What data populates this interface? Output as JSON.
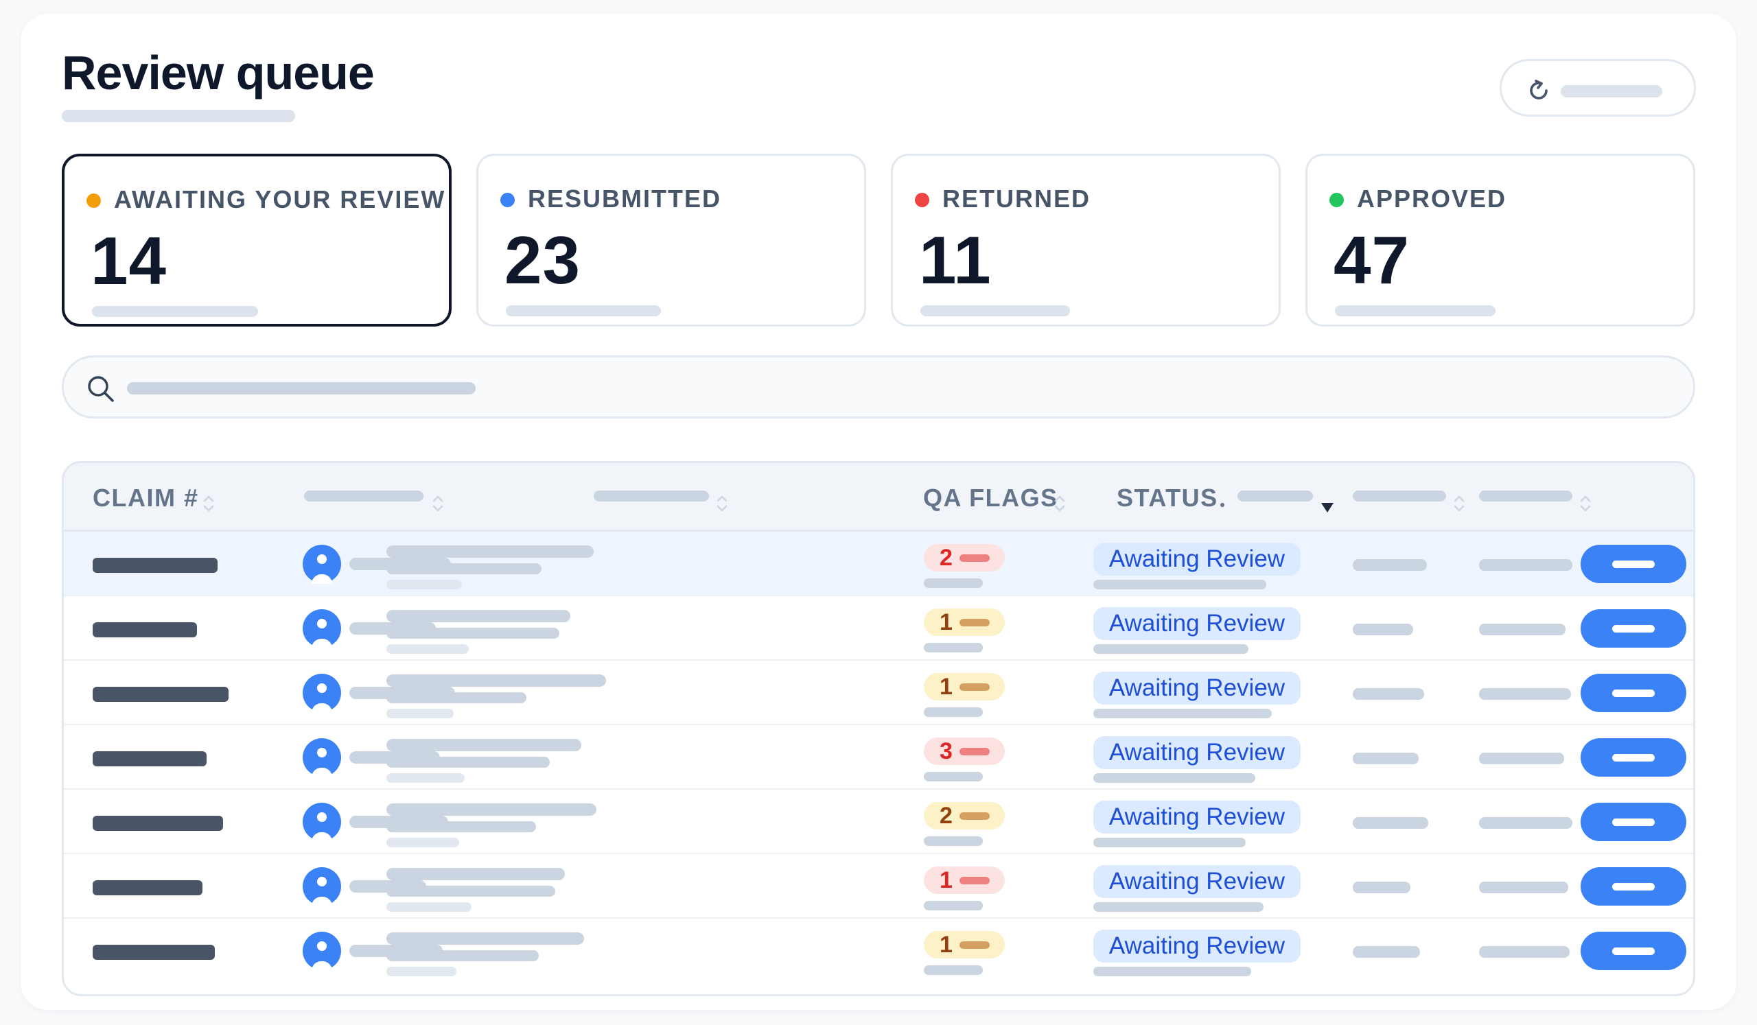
{
  "page": {
    "title": "Review queue"
  },
  "stats": [
    {
      "label": "AWAITING YOUR REVIEW",
      "value": "14",
      "color": "#f59e0b",
      "active": true
    },
    {
      "label": "RESUBMITTED",
      "value": "23",
      "color": "#3b82f6",
      "active": false
    },
    {
      "label": "RETURNED",
      "value": "11",
      "color": "#ef4444",
      "active": false
    },
    {
      "label": "APPROVED",
      "value": "47",
      "color": "#22c55e",
      "active": false
    }
  ],
  "table": {
    "columns": {
      "claim": "CLAIM #",
      "qa_flags": "QA FLAGS",
      "status": "STATUS"
    },
    "rows": [
      {
        "flags": "2",
        "flag_tone": "red",
        "status": "Awaiting Review"
      },
      {
        "flags": "1",
        "flag_tone": "amber",
        "status": "Awaiting Review"
      },
      {
        "flags": "1",
        "flag_tone": "amber",
        "status": "Awaiting Review"
      },
      {
        "flags": "3",
        "flag_tone": "red",
        "status": "Awaiting Review"
      },
      {
        "flags": "2",
        "flag_tone": "amber",
        "status": "Awaiting Review"
      },
      {
        "flags": "1",
        "flag_tone": "red",
        "status": "Awaiting Review"
      },
      {
        "flags": "1",
        "flag_tone": "amber",
        "status": "Awaiting Review"
      }
    ]
  },
  "icons": {
    "refresh": "refresh-icon",
    "search": "search-icon",
    "avatar": "user-avatar-icon",
    "sort": "sort-icon",
    "dropdown": "caret-down-icon"
  },
  "colors": {
    "accent": "#3b82f6",
    "status_badge_bg": "#dbeafe",
    "status_badge_text": "#1d4ed8",
    "title": "#0f172a"
  }
}
